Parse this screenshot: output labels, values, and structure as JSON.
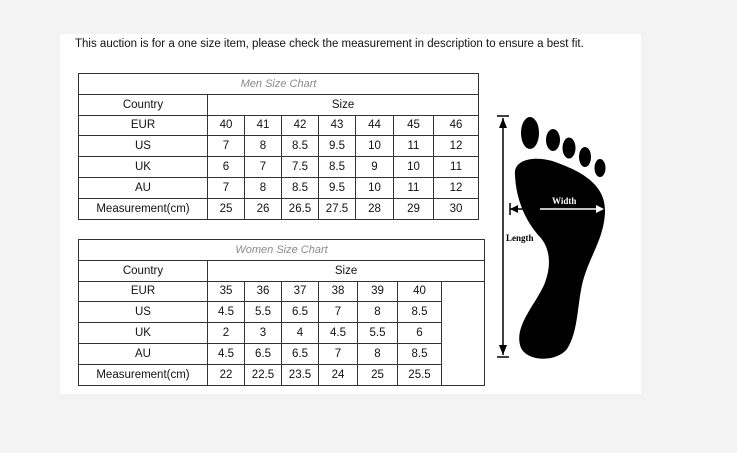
{
  "notice": "This auction is for a one size item, please check the measurement in description to ensure a best fit.",
  "men_chart": {
    "title": "Men Size Chart",
    "header": {
      "country": "Country",
      "size": "Size"
    },
    "rows": [
      {
        "country": "EUR",
        "values": [
          "40",
          "41",
          "42",
          "43",
          "44",
          "45",
          "46"
        ]
      },
      {
        "country": "US",
        "values": [
          "7",
          "8",
          "8.5",
          "9.5",
          "10",
          "11",
          "12"
        ]
      },
      {
        "country": "UK",
        "values": [
          "6",
          "7",
          "7.5",
          "8.5",
          "9",
          "10",
          "11"
        ]
      },
      {
        "country": "AU",
        "values": [
          "7",
          "8",
          "8.5",
          "9.5",
          "10",
          "11",
          "12"
        ]
      },
      {
        "country": "Measurement(cm)",
        "values": [
          "25",
          "26",
          "26.5",
          "27.5",
          "28",
          "29",
          "30"
        ]
      }
    ]
  },
  "women_chart": {
    "title": "Women Size Chart",
    "header": {
      "country": "Country",
      "size": "Size"
    },
    "rows": [
      {
        "country": "EUR",
        "values": [
          "35",
          "36",
          "37",
          "38",
          "39",
          "40"
        ]
      },
      {
        "country": "US",
        "values": [
          "4.5",
          "5.5",
          "6.5",
          "7",
          "8",
          "8.5"
        ]
      },
      {
        "country": "UK",
        "values": [
          "2",
          "3",
          "4",
          "4.5",
          "5.5",
          "6"
        ]
      },
      {
        "country": "AU",
        "values": [
          "4.5",
          "6.5",
          "6.5",
          "7",
          "8",
          "8.5"
        ]
      },
      {
        "country": "Measurement(cm)",
        "values": [
          "22",
          "22.5",
          "23.5",
          "24",
          "25",
          "25.5"
        ]
      }
    ]
  },
  "foot_diagram": {
    "width_label": "Width",
    "length_label": "Length"
  }
}
